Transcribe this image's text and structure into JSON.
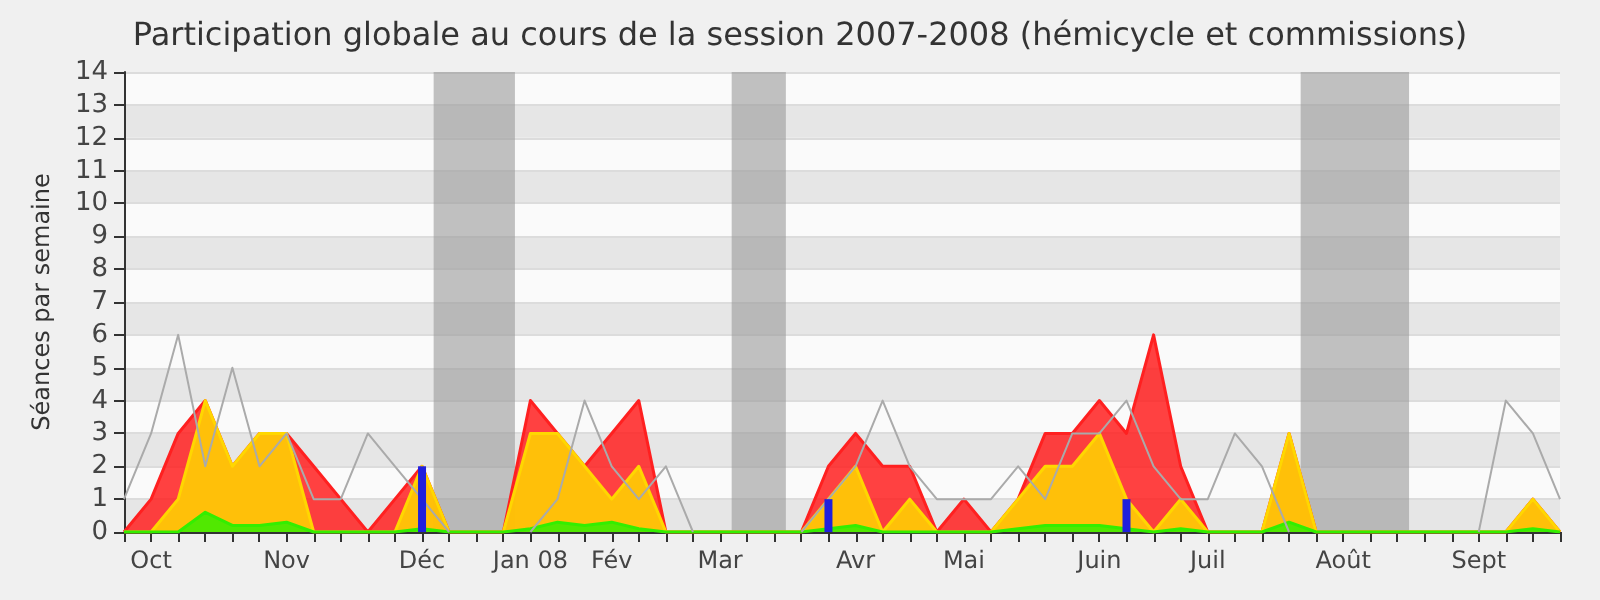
{
  "chart_data": {
    "type": "area",
    "title": "Participation globale au cours de la session 2007-2008 (hémicycle et commissions)",
    "ylabel": "Séances par semaine",
    "xlim": [
      "2007-10-01",
      "2008-10-06"
    ],
    "xticks": [
      {
        "value": "2007-10-01",
        "label": null
      },
      {
        "value": "2007-10-08",
        "label": "Oct"
      },
      {
        "value": "2007-10-15",
        "label": null
      },
      {
        "value": "2007-10-22",
        "label": null
      },
      {
        "value": "2007-10-29",
        "label": null
      },
      {
        "value": "2007-11-05",
        "label": null
      },
      {
        "value": "2007-11-12",
        "label": "Nov"
      },
      {
        "value": "2007-11-19",
        "label": null
      },
      {
        "value": "2007-11-26",
        "label": null
      },
      {
        "value": "2007-12-03",
        "label": null
      },
      {
        "value": "2007-12-10",
        "label": null
      },
      {
        "value": "2007-12-17",
        "label": "Déc"
      },
      {
        "value": "2007-12-24",
        "label": null
      },
      {
        "value": "2007-12-31",
        "label": null
      },
      {
        "value": "2008-01-07",
        "label": null
      },
      {
        "value": "2008-01-14",
        "label": "Jan 08"
      },
      {
        "value": "2008-01-21",
        "label": null
      },
      {
        "value": "2008-01-28",
        "label": null
      },
      {
        "value": "2008-02-04",
        "label": "Fév"
      },
      {
        "value": "2008-02-11",
        "label": null
      },
      {
        "value": "2008-02-18",
        "label": null
      },
      {
        "value": "2008-02-25",
        "label": null
      },
      {
        "value": "2008-03-03",
        "label": "Mar"
      },
      {
        "value": "2008-03-10",
        "label": null
      },
      {
        "value": "2008-03-17",
        "label": null
      },
      {
        "value": "2008-03-24",
        "label": null
      },
      {
        "value": "2008-03-31",
        "label": null
      },
      {
        "value": "2008-04-07",
        "label": "Avr"
      },
      {
        "value": "2008-04-14",
        "label": null
      },
      {
        "value": "2008-04-21",
        "label": null
      },
      {
        "value": "2008-04-28",
        "label": null
      },
      {
        "value": "2008-05-05",
        "label": "Mai"
      },
      {
        "value": "2008-05-12",
        "label": null
      },
      {
        "value": "2008-05-19",
        "label": null
      },
      {
        "value": "2008-05-26",
        "label": null
      },
      {
        "value": "2008-06-02",
        "label": null
      },
      {
        "value": "2008-06-09",
        "label": "Juin"
      },
      {
        "value": "2008-06-16",
        "label": null
      },
      {
        "value": "2008-06-23",
        "label": null
      },
      {
        "value": "2008-06-30",
        "label": null
      },
      {
        "value": "2008-07-07",
        "label": "Juil"
      },
      {
        "value": "2008-07-14",
        "label": null
      },
      {
        "value": "2008-07-21",
        "label": null
      },
      {
        "value": "2008-07-28",
        "label": null
      },
      {
        "value": "2008-08-04",
        "label": null
      },
      {
        "value": "2008-08-11",
        "label": "Août"
      },
      {
        "value": "2008-08-18",
        "label": null
      },
      {
        "value": "2008-08-25",
        "label": null
      },
      {
        "value": "2008-09-01",
        "label": null
      },
      {
        "value": "2008-09-08",
        "label": null
      },
      {
        "value": "2008-09-15",
        "label": "Sept"
      },
      {
        "value": "2008-09-22",
        "label": null
      },
      {
        "value": "2008-09-29",
        "label": null
      },
      {
        "value": "2008-10-06",
        "label": null
      }
    ],
    "ylim": [
      0,
      14
    ],
    "yticks": [
      0,
      1,
      2,
      3,
      4,
      5,
      6,
      7,
      8,
      9,
      10,
      11,
      12,
      13,
      14
    ],
    "grid": "y",
    "marker": "none",
    "x": [
      "2007-10-01",
      "2007-10-08",
      "2007-10-15",
      "2007-10-22",
      "2007-10-29",
      "2007-11-05",
      "2007-11-12",
      "2007-11-19",
      "2007-11-26",
      "2007-12-03",
      "2007-12-10",
      "2007-12-17",
      "2007-12-24",
      "2007-12-31",
      "2008-01-07",
      "2008-01-14",
      "2008-01-21",
      "2008-01-28",
      "2008-02-04",
      "2008-02-11",
      "2008-02-18",
      "2008-02-25",
      "2008-03-03",
      "2008-03-10",
      "2008-03-17",
      "2008-03-24",
      "2008-03-31",
      "2008-04-07",
      "2008-04-14",
      "2008-04-21",
      "2008-04-28",
      "2008-05-05",
      "2008-05-12",
      "2008-05-19",
      "2008-05-26",
      "2008-06-02",
      "2008-06-09",
      "2008-06-16",
      "2008-06-23",
      "2008-06-30",
      "2008-07-07",
      "2008-07-14",
      "2008-07-21",
      "2008-07-28",
      "2008-08-04",
      "2008-08-11",
      "2008-08-18",
      "2008-08-25",
      "2008-09-01",
      "2008-09-08",
      "2008-09-15",
      "2008-09-22",
      "2008-09-29",
      "2008-10-06"
    ],
    "bands": [
      {
        "axis": "x",
        "from": "2007-12-20",
        "to": "2008-01-10",
        "color": "#999999"
      },
      {
        "axis": "x",
        "from": "2008-03-06",
        "to": "2008-03-20",
        "color": "#999999"
      },
      {
        "axis": "x",
        "from": "2008-07-31",
        "to": "2008-08-28",
        "color": "#999999"
      }
    ],
    "series": [
      {
        "type": "line",
        "color": "#aaaaaa",
        "values": [
          1,
          3,
          6,
          2,
          5,
          2,
          3,
          1,
          1,
          3,
          2,
          1,
          0,
          null,
          null,
          0,
          1,
          4,
          2,
          1,
          2,
          0,
          null,
          null,
          null,
          0,
          1,
          2,
          4,
          2,
          1,
          1,
          1,
          2,
          1,
          3,
          3,
          4,
          2,
          1,
          1,
          3,
          2,
          0,
          null,
          null,
          null,
          null,
          null,
          null,
          0,
          4,
          3,
          1
        ]
      },
      {
        "color": "#ff2020",
        "values": [
          0,
          1,
          3,
          4,
          2,
          3,
          3,
          2,
          1,
          0,
          1,
          2,
          0,
          0,
          0,
          4,
          3,
          2,
          3,
          4,
          0,
          0,
          0,
          0,
          0,
          0,
          2,
          3,
          2,
          2,
          0,
          1,
          0,
          1,
          3,
          3,
          4,
          3,
          6,
          2,
          0,
          0,
          0,
          3,
          0,
          0,
          0,
          0,
          0,
          0,
          0,
          0,
          1,
          0
        ]
      },
      {
        "color": "#ffd700",
        "values": [
          0,
          0,
          1,
          4,
          2,
          3,
          3,
          0,
          0,
          0,
          0,
          2,
          0,
          0,
          0,
          3,
          3,
          2,
          1,
          2,
          0,
          0,
          0,
          0,
          0,
          0,
          1,
          2,
          0,
          1,
          0,
          0,
          0,
          1,
          2,
          2,
          3,
          1,
          0,
          1,
          0,
          0,
          0,
          3,
          0,
          0,
          0,
          0,
          0,
          0,
          0,
          0,
          1,
          0
        ]
      },
      {
        "color": "#33ee00",
        "values": [
          0,
          0,
          0,
          0.6,
          0.2,
          0.2,
          0.3,
          0,
          0,
          0,
          0,
          0.1,
          0,
          0,
          0,
          0.1,
          0.3,
          0.2,
          0.3,
          0.1,
          0,
          0,
          0,
          0,
          0,
          0,
          0.1,
          0.2,
          0,
          0,
          0,
          0,
          0,
          0.1,
          0.2,
          0.2,
          0.2,
          0.1,
          0,
          0.1,
          0,
          0,
          0,
          0.3,
          0,
          0,
          0,
          0,
          0,
          0,
          0,
          0,
          0.1,
          0
        ]
      },
      {
        "type": "bar",
        "color": "#2020dd",
        "x": [
          "2007-12-17",
          "2008-03-31",
          "2008-06-16"
        ],
        "values": [
          2,
          1,
          1
        ]
      }
    ]
  }
}
